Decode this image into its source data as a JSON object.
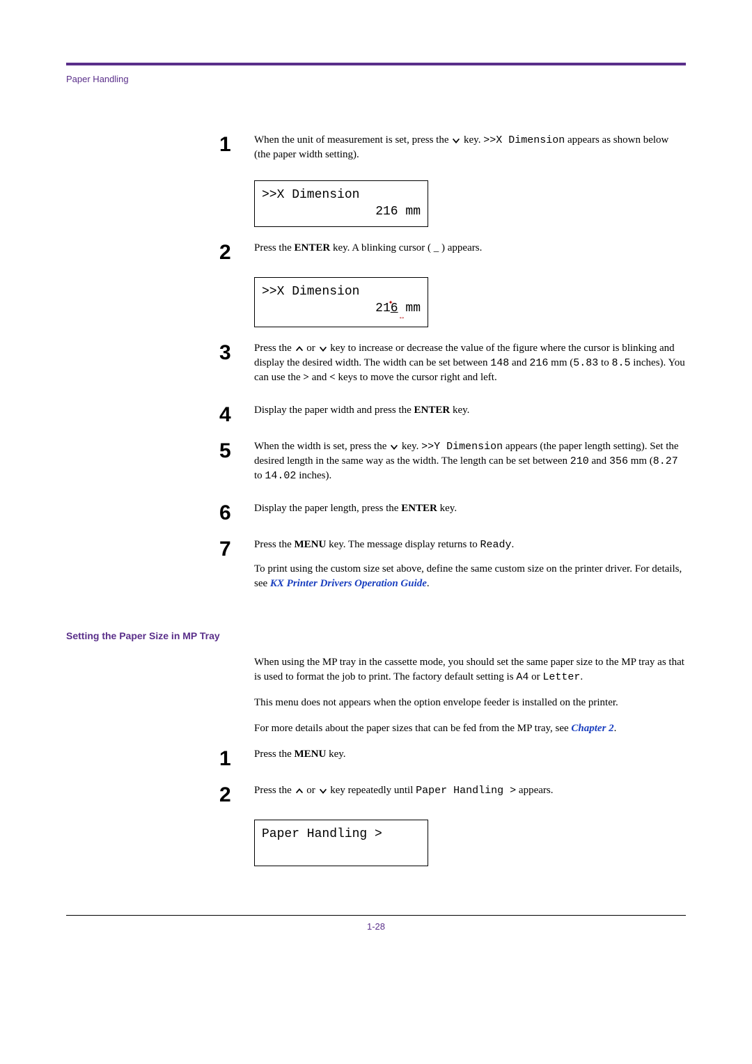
{
  "colors": {
    "accent": "#5a2f8a",
    "link": "#1a3fbf",
    "text": "#000000",
    "bg": "#ffffff",
    "red_annot": "#b00000"
  },
  "fonts": {
    "body_family": "Georgia, serif",
    "ui_family": "Arial, sans-serif",
    "mono_family": "Courier New, monospace",
    "body_size_pt": 11,
    "stepnum_size_pt": 22,
    "h2_size_pt": 10.5
  },
  "running_head": "Paper Handling",
  "steps_a": [
    {
      "num": "1",
      "parts": [
        {
          "t": "text",
          "v": "When the unit of measurement is set, press the "
        },
        {
          "t": "down-key"
        },
        {
          "t": "text",
          "v": " key. "
        },
        {
          "t": "mono",
          "v": ">>X Dimension"
        },
        {
          "t": "text",
          "v": " appears as shown below (the paper width setting)."
        }
      ],
      "lcd": {
        "line1": ">>X Dimension",
        "line2": "216 mm"
      }
    },
    {
      "num": "2",
      "parts": [
        {
          "t": "text",
          "v": "Press the "
        },
        {
          "t": "bold",
          "v": "ENTER"
        },
        {
          "t": "text",
          "v": " key. A blinking cursor ( _ ) appears."
        }
      ],
      "lcd_cursor": {
        "line1": ">>X Dimension",
        "prefix": "21",
        "cursor_digit": "6",
        "suffix": " mm"
      }
    },
    {
      "num": "3",
      "parts": [
        {
          "t": "text",
          "v": "Press the "
        },
        {
          "t": "up-key"
        },
        {
          "t": "text",
          "v": " or "
        },
        {
          "t": "down-key"
        },
        {
          "t": "text",
          "v": " key to increase or decrease the value of the figure where the cursor is blinking and display the desired width. The width can be set between "
        },
        {
          "t": "mono",
          "v": "148"
        },
        {
          "t": "text",
          "v": " and "
        },
        {
          "t": "mono",
          "v": "216"
        },
        {
          "t": "text",
          "v": " mm ("
        },
        {
          "t": "mono",
          "v": "5.83"
        },
        {
          "t": "text",
          "v": " to "
        },
        {
          "t": "mono",
          "v": "8.5"
        },
        {
          "t": "text",
          "v": " inches). You can use the "
        },
        {
          "t": "bold",
          "v": ">"
        },
        {
          "t": "text",
          "v": " and "
        },
        {
          "t": "bold",
          "v": "<"
        },
        {
          "t": "text",
          "v": " keys to move the cursor right and left."
        }
      ]
    },
    {
      "num": "4",
      "parts": [
        {
          "t": "text",
          "v": "Display the paper width and press the "
        },
        {
          "t": "bold",
          "v": "ENTER"
        },
        {
          "t": "text",
          "v": " key."
        }
      ]
    },
    {
      "num": "5",
      "parts": [
        {
          "t": "text",
          "v": "When the width is set, press the "
        },
        {
          "t": "down-key"
        },
        {
          "t": "text",
          "v": " key. "
        },
        {
          "t": "mono",
          "v": ">>Y Dimension"
        },
        {
          "t": "text",
          "v": " appears (the paper length setting). Set the desired length in the same way as the width. The length can be set between "
        },
        {
          "t": "mono",
          "v": "210"
        },
        {
          "t": "text",
          "v": " and "
        },
        {
          "t": "mono",
          "v": "356"
        },
        {
          "t": "text",
          "v": " mm ("
        },
        {
          "t": "mono",
          "v": "8.27"
        },
        {
          "t": "text",
          "v": " to "
        },
        {
          "t": "mono",
          "v": "14.02"
        },
        {
          "t": "text",
          "v": " inches)."
        }
      ]
    },
    {
      "num": "6",
      "parts": [
        {
          "t": "text",
          "v": "Display the paper length, press the "
        },
        {
          "t": "bold",
          "v": "ENTER"
        },
        {
          "t": "text",
          "v": " key."
        }
      ]
    },
    {
      "num": "7",
      "parts": [
        {
          "t": "text",
          "v": "Press the "
        },
        {
          "t": "bold",
          "v": "MENU"
        },
        {
          "t": "text",
          "v": " key. The message display returns to "
        },
        {
          "t": "mono",
          "v": "Ready"
        },
        {
          "t": "text",
          "v": "."
        }
      ],
      "extra": [
        {
          "t": "text",
          "v": "To print using the custom size set above, define the same custom size on the printer driver. For details, see "
        },
        {
          "t": "link",
          "v": "KX Printer Drivers Operation Guide"
        },
        {
          "t": "text",
          "v": "."
        }
      ]
    }
  ],
  "section_b": {
    "heading": "Setting the Paper Size in MP Tray",
    "paras": [
      [
        {
          "t": "text",
          "v": "When using the MP tray in the cassette mode, you should set the same paper size to the MP tray as that is used to format the job to print. The factory default setting is "
        },
        {
          "t": "mono",
          "v": "A4"
        },
        {
          "t": "text",
          "v": " or "
        },
        {
          "t": "mono",
          "v": "Letter"
        },
        {
          "t": "text",
          "v": "."
        }
      ],
      [
        {
          "t": "text",
          "v": "This menu does not appears when the option envelope feeder is installed on the printer."
        }
      ],
      [
        {
          "t": "text",
          "v": "For more details about the paper sizes that can be fed from the MP tray, see "
        },
        {
          "t": "link",
          "v": "Chapter 2"
        },
        {
          "t": "text",
          "v": "."
        }
      ]
    ],
    "steps": [
      {
        "num": "1",
        "parts": [
          {
            "t": "text",
            "v": "Press the "
          },
          {
            "t": "bold",
            "v": "MENU"
          },
          {
            "t": "text",
            "v": " key."
          }
        ]
      },
      {
        "num": "2",
        "parts": [
          {
            "t": "text",
            "v": "Press the "
          },
          {
            "t": "up-key"
          },
          {
            "t": "text",
            "v": " or "
          },
          {
            "t": "down-key"
          },
          {
            "t": "text",
            "v": " key repeatedly until "
          },
          {
            "t": "mono",
            "v": "Paper Handling >"
          },
          {
            "t": "text",
            "v": " appears."
          }
        ],
        "lcd": {
          "line1": "Paper Handling >",
          "line2": " "
        }
      }
    ]
  },
  "page_num": "1-28"
}
